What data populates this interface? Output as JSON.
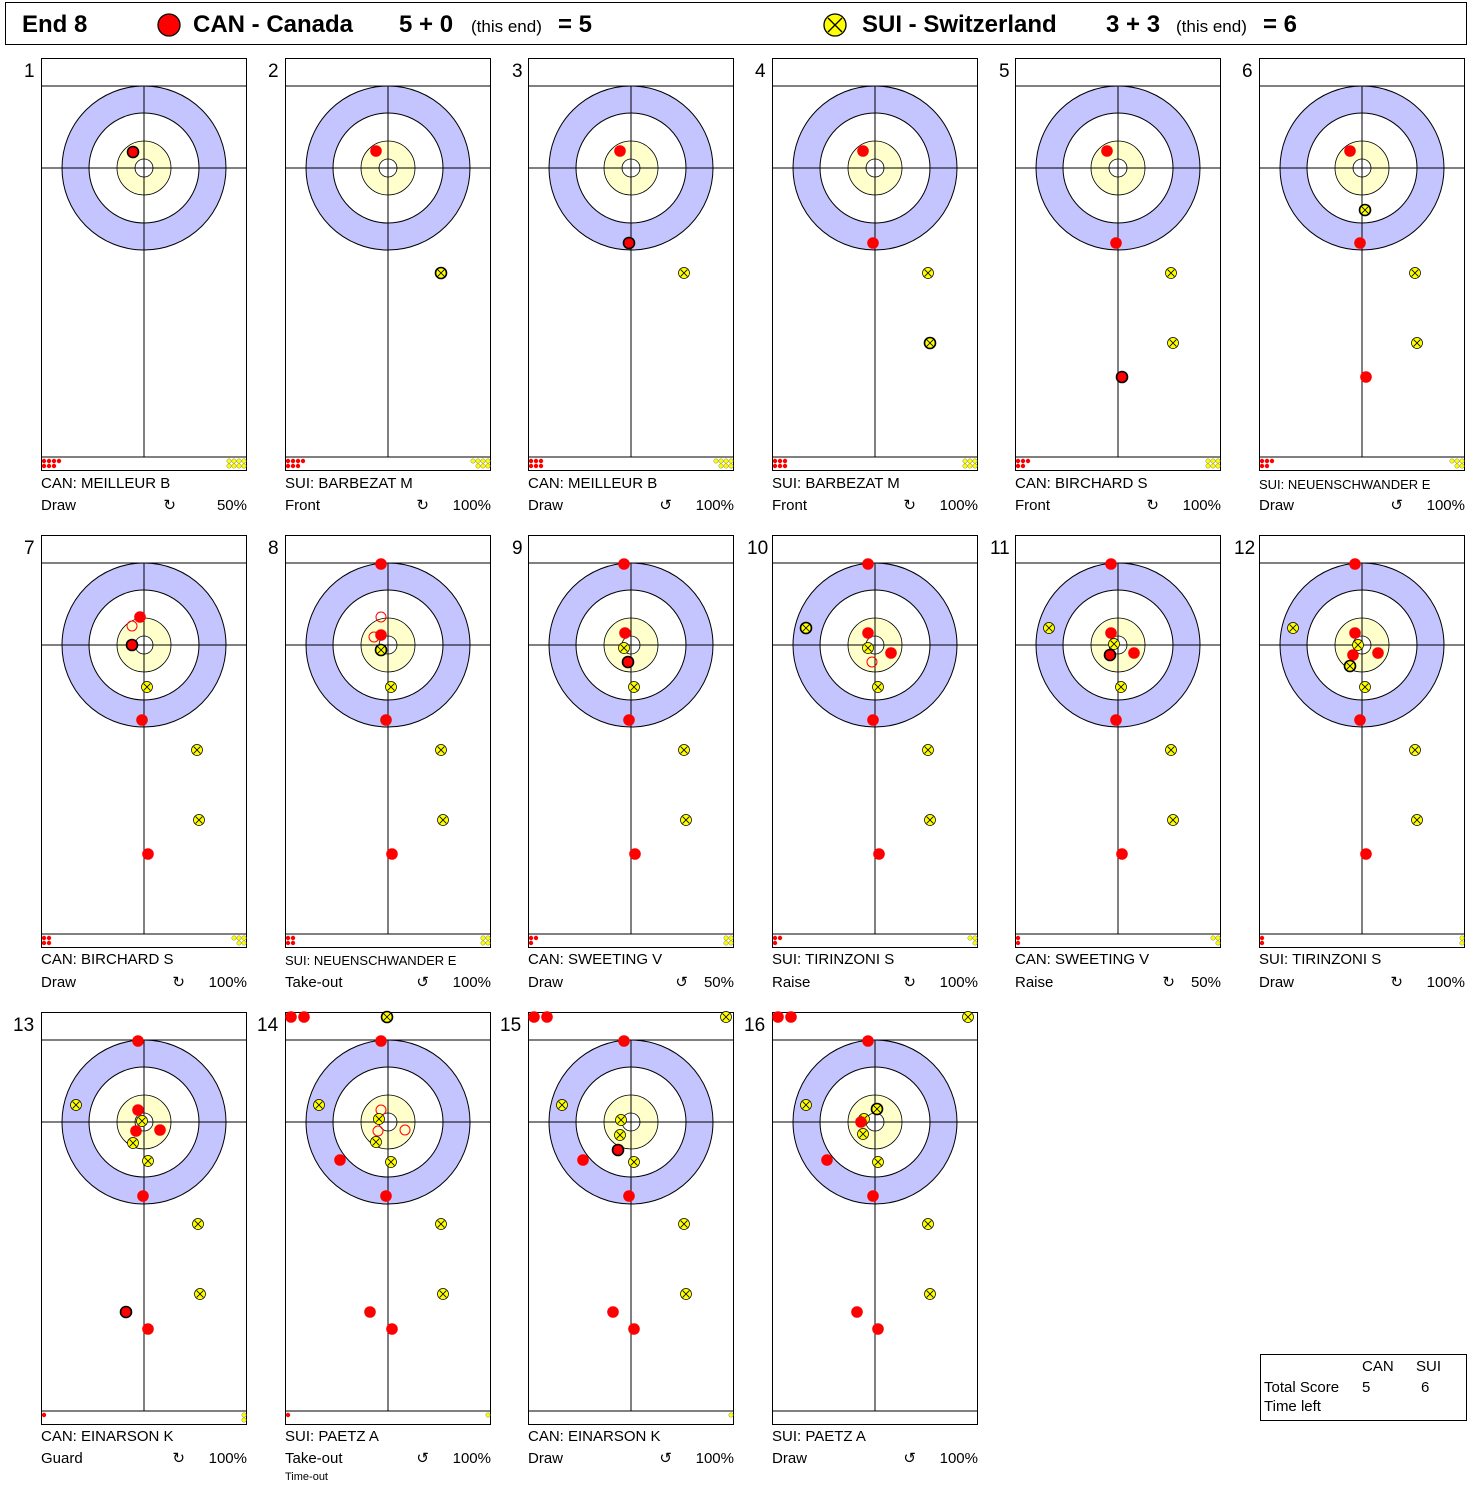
{
  "header": {
    "end_label": "End 8",
    "team1": {
      "name": "CAN - Canada",
      "score_expr": "5 + 0",
      "this_end": "(this end)",
      "total": "= 5",
      "color": "#ff0000"
    },
    "team2": {
      "name": "SUI - Switzerland",
      "score_expr": "3 + 3",
      "this_end": "(this end)",
      "total": "= 6",
      "color": "#ffff00"
    }
  },
  "colors": {
    "ring_outer": "#c4c4ff",
    "ring_inner": "#ffffcc",
    "red_stone": "#ff0000",
    "yellow_stone": "#ffff00"
  },
  "shots": [
    {
      "num": "1",
      "player": "CAN: MEILLEUR B",
      "shot_type": "Draw",
      "rotation": "↻",
      "pct": "50%",
      "note": ""
    },
    {
      "num": "2",
      "player": "SUI: BARBEZAT M",
      "shot_type": "Front",
      "rotation": "↻",
      "pct": "100%",
      "note": ""
    },
    {
      "num": "3",
      "player": "CAN: MEILLEUR B",
      "shot_type": "Draw",
      "rotation": "↺",
      "pct": "100%",
      "note": ""
    },
    {
      "num": "4",
      "player": "SUI: BARBEZAT M",
      "shot_type": "Front",
      "rotation": "↻",
      "pct": "100%",
      "note": ""
    },
    {
      "num": "5",
      "player": "CAN: BIRCHARD S",
      "shot_type": "Front",
      "rotation": "↻",
      "pct": "100%",
      "note": ""
    },
    {
      "num": "6",
      "player": "SUI: NEUENSCHWANDER E",
      "shot_type": "Draw",
      "rotation": "↺",
      "pct": "100%",
      "note": ""
    },
    {
      "num": "7",
      "player": "CAN: BIRCHARD S",
      "shot_type": "Draw",
      "rotation": "↻",
      "pct": "100%",
      "note": ""
    },
    {
      "num": "8",
      "player": "SUI: NEUENSCHWANDER E",
      "shot_type": "Take-out",
      "rotation": "↺",
      "pct": "100%",
      "note": ""
    },
    {
      "num": "9",
      "player": "CAN: SWEETING V",
      "shot_type": "Draw",
      "rotation": "↺",
      "pct": "50%",
      "note": ""
    },
    {
      "num": "10",
      "player": "SUI: TIRINZONI S",
      "shot_type": "Raise",
      "rotation": "↻",
      "pct": "100%",
      "note": ""
    },
    {
      "num": "11",
      "player": "CAN: SWEETING V",
      "shot_type": "Raise",
      "rotation": "↻",
      "pct": "50%",
      "note": ""
    },
    {
      "num": "12",
      "player": "SUI: TIRINZONI S",
      "shot_type": "Draw",
      "rotation": "↻",
      "pct": "100%",
      "note": ""
    },
    {
      "num": "13",
      "player": "CAN: EINARSON K",
      "shot_type": "Guard",
      "rotation": "↻",
      "pct": "100%",
      "note": ""
    },
    {
      "num": "14",
      "player": "SUI: PAETZ A",
      "shot_type": "Take-out",
      "rotation": "↺",
      "pct": "100%",
      "note": "Time-out"
    },
    {
      "num": "15",
      "player": "CAN: EINARSON K",
      "shot_type": "Draw",
      "rotation": "↺",
      "pct": "100%",
      "note": ""
    },
    {
      "num": "16",
      "player": "SUI: PAETZ A",
      "shot_type": "Draw",
      "rotation": "↺",
      "pct": "100%",
      "note": ""
    }
  ],
  "scoreboard": {
    "col1": "CAN",
    "col2": "SUI",
    "row1_label": "Total Score",
    "row1_val1": "5",
    "row1_val2": "6",
    "row2_label": "Time left"
  }
}
